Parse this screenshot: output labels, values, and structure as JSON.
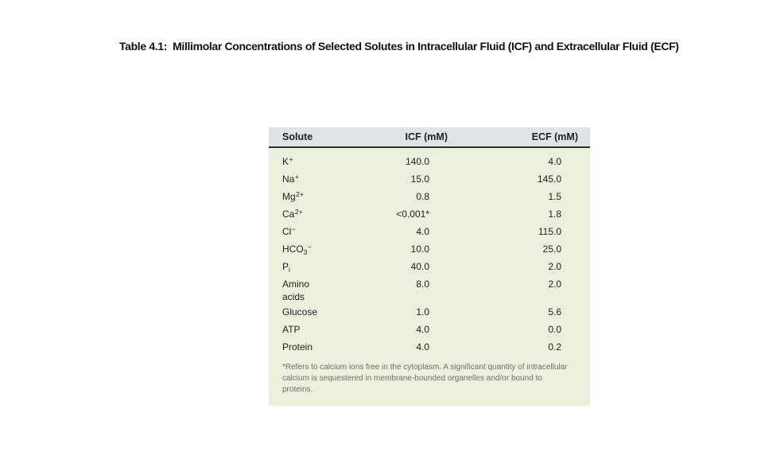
{
  "title": "Table 4.1:  Millimolar Concentrations of Selected Solutes in Intracellular Fluid (ICF) and Extracellular Fluid (ECF)",
  "table": {
    "columns": [
      "Solute",
      "ICF (mM)",
      "ECF (mM)"
    ],
    "rows": [
      {
        "solute": {
          "text": "K",
          "sub": "",
          "sup": "+"
        },
        "icf": "140.0",
        "ecf": "4.0"
      },
      {
        "solute": {
          "text": "Na",
          "sub": "",
          "sup": "+"
        },
        "icf": "15.0",
        "ecf": "145.0"
      },
      {
        "solute": {
          "text": "Mg",
          "sub": "",
          "sup": "2+"
        },
        "icf": "0.8",
        "ecf": "1.5"
      },
      {
        "solute": {
          "text": "Ca",
          "sub": "",
          "sup": "2+"
        },
        "icf": "<0.001*",
        "ecf": "1.8"
      },
      {
        "solute": {
          "text": "Cl",
          "sub": "",
          "sup": "−"
        },
        "icf": "4.0",
        "ecf": "115.0"
      },
      {
        "solute": {
          "text": "HCO",
          "sub": "3",
          "sup": "−"
        },
        "icf": "10.0",
        "ecf": "25.0"
      },
      {
        "solute": {
          "text": "P",
          "sub": "i",
          "sup": ""
        },
        "icf": "40.0",
        "ecf": "2.0"
      },
      {
        "solute": {
          "text": "Amino\nacids",
          "sub": "",
          "sup": ""
        },
        "icf": "8.0",
        "ecf": "2.0"
      },
      {
        "solute": {
          "text": "Glucose",
          "sub": "",
          "sup": ""
        },
        "icf": "1.0",
        "ecf": "5.6"
      },
      {
        "solute": {
          "text": "ATP",
          "sub": "",
          "sup": ""
        },
        "icf": "4.0",
        "ecf": "0.0"
      },
      {
        "solute": {
          "text": "Protein",
          "sub": "",
          "sup": ""
        },
        "icf": "4.0",
        "ecf": "0.2"
      }
    ],
    "footnote": "*Refers to calcium ions free in the cytoplasm. A significant quantity of intracellular\ncalcium is sequestered in membrane-bounded organelles and/or bound to\nproteins.",
    "colors": {
      "page_bg": "#ffffff",
      "header_bg": "#dde5e5",
      "body_bg": "#eaf2dd",
      "header_rule": "#2e2e2e",
      "text": "#222222",
      "footnote_text": "#6e7165"
    }
  }
}
